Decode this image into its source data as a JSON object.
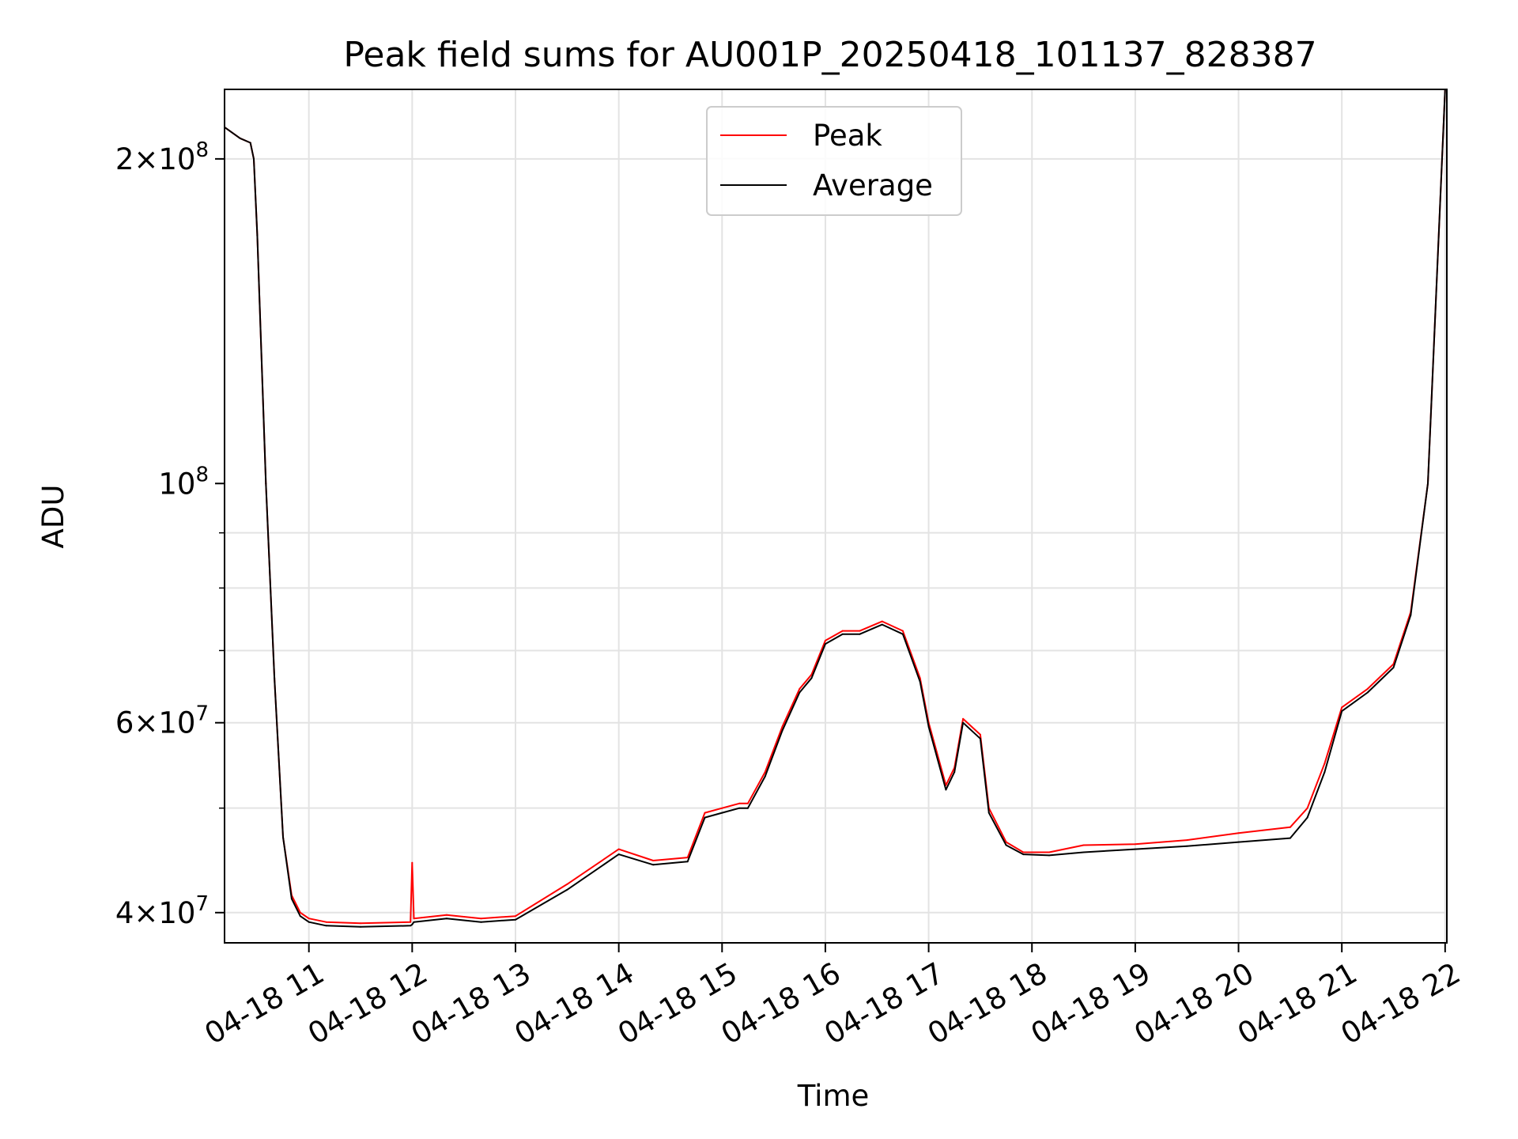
{
  "chart_data": {
    "type": "line",
    "title": "Peak field sums for AU001P_20250418_101137_828387",
    "xlabel": "Time",
    "ylabel": "ADU",
    "yscale": "log",
    "ylim": [
      37500000,
      232000000
    ],
    "xlim": [
      "04-18 10:11",
      "04-18 22:01"
    ],
    "grid": true,
    "legend_position": "upper center",
    "x_ticks": [
      "04-18 11",
      "04-18 12",
      "04-18 13",
      "04-18 14",
      "04-18 15",
      "04-18 16",
      "04-18 17",
      "04-18 18",
      "04-18 19",
      "04-18 20",
      "04-18 21",
      "04-18 22"
    ],
    "y_ticks": [
      {
        "value": 40000000,
        "label": "4×10^7",
        "mantissa": "4×10",
        "exponent": "7"
      },
      {
        "value": 60000000,
        "label": "6×10^7",
        "mantissa": "6×10",
        "exponent": "7"
      },
      {
        "value": 100000000,
        "label": "10^8",
        "mantissa": "10",
        "exponent": "8"
      },
      {
        "value": 200000000,
        "label": "2×10^8",
        "mantissa": "2×10",
        "exponent": "8"
      }
    ],
    "series": [
      {
        "name": "Peak",
        "color": "#ff0000",
        "x": [
          "04-18 10:11",
          "04-18 10:20",
          "04-18 10:26",
          "04-18 10:28",
          "04-18 10:30",
          "04-18 10:35",
          "04-18 10:40",
          "04-18 10:45",
          "04-18 10:50",
          "04-18 10:55",
          "04-18 11:00",
          "04-18 11:10",
          "04-18 11:30",
          "04-18 11:59",
          "04-18 12:00",
          "04-18 12:01",
          "04-18 12:20",
          "04-18 12:40",
          "04-18 13:00",
          "04-18 13:30",
          "04-18 14:00",
          "04-18 14:20",
          "04-18 14:40",
          "04-18 14:50",
          "04-18 15:00",
          "04-18 15:10",
          "04-18 15:15",
          "04-18 15:25",
          "04-18 15:35",
          "04-18 15:45",
          "04-18 15:52",
          "04-18 16:00",
          "04-18 16:10",
          "04-18 16:20",
          "04-18 16:33",
          "04-18 16:45",
          "04-18 16:55",
          "04-18 17:00",
          "04-18 17:10",
          "04-18 17:15",
          "04-18 17:20",
          "04-18 17:30",
          "04-18 17:35",
          "04-18 17:45",
          "04-18 17:55",
          "04-18 18:10",
          "04-18 18:30",
          "04-18 19:00",
          "04-18 19:30",
          "04-18 20:00",
          "04-18 20:30",
          "04-18 20:40",
          "04-18 20:50",
          "04-18 21:00",
          "04-18 21:15",
          "04-18 21:30",
          "04-18 21:40",
          "04-18 21:50",
          "04-18 22:00"
        ],
        "values": [
          214000000,
          209000000,
          207000000,
          200000000,
          170000000,
          100000000,
          66000000,
          47000000,
          41500000,
          40000000,
          39500000,
          39200000,
          39100000,
          39200000,
          44500000,
          39500000,
          39800000,
          39500000,
          39700000,
          42500000,
          45800000,
          44700000,
          45000000,
          49500000,
          50000000,
          50500000,
          50500000,
          54000000,
          59500000,
          64500000,
          66500000,
          71500000,
          73000000,
          73000000,
          74500000,
          73000000,
          66000000,
          60000000,
          52500000,
          54500000,
          60500000,
          58500000,
          50000000,
          46500000,
          45500000,
          45500000,
          46200000,
          46300000,
          46700000,
          47400000,
          48000000,
          50000000,
          55000000,
          62000000,
          64500000,
          68000000,
          76000000,
          100000000,
          232000000
        ]
      },
      {
        "name": "Average",
        "color": "#000000",
        "x": [
          "04-18 10:11",
          "04-18 10:20",
          "04-18 10:26",
          "04-18 10:28",
          "04-18 10:30",
          "04-18 10:35",
          "04-18 10:40",
          "04-18 10:45",
          "04-18 10:50",
          "04-18 10:55",
          "04-18 11:00",
          "04-18 11:10",
          "04-18 11:30",
          "04-18 11:59",
          "04-18 12:00",
          "04-18 12:01",
          "04-18 12:20",
          "04-18 12:40",
          "04-18 13:00",
          "04-18 13:30",
          "04-18 14:00",
          "04-18 14:20",
          "04-18 14:40",
          "04-18 14:50",
          "04-18 15:00",
          "04-18 15:10",
          "04-18 15:15",
          "04-18 15:25",
          "04-18 15:35",
          "04-18 15:45",
          "04-18 15:52",
          "04-18 16:00",
          "04-18 16:10",
          "04-18 16:20",
          "04-18 16:33",
          "04-18 16:45",
          "04-18 16:55",
          "04-18 17:00",
          "04-18 17:10",
          "04-18 17:15",
          "04-18 17:20",
          "04-18 17:30",
          "04-18 17:35",
          "04-18 17:45",
          "04-18 17:55",
          "04-18 18:10",
          "04-18 18:30",
          "04-18 19:00",
          "04-18 19:30",
          "04-18 20:00",
          "04-18 20:30",
          "04-18 20:40",
          "04-18 20:50",
          "04-18 21:00",
          "04-18 21:15",
          "04-18 21:30",
          "04-18 21:40",
          "04-18 21:50",
          "04-18 22:00"
        ],
        "values": [
          214000000,
          209000000,
          207000000,
          200000000,
          170000000,
          100000000,
          66000000,
          47000000,
          41200000,
          39700000,
          39200000,
          38900000,
          38800000,
          38900000,
          39000000,
          39200000,
          39500000,
          39200000,
          39400000,
          42000000,
          45300000,
          44300000,
          44600000,
          49000000,
          49500000,
          50000000,
          50000000,
          53500000,
          59000000,
          64000000,
          66000000,
          71000000,
          72500000,
          72500000,
          74000000,
          72500000,
          65500000,
          59500000,
          52000000,
          54000000,
          60000000,
          58000000,
          49500000,
          46200000,
          45300000,
          45200000,
          45500000,
          45800000,
          46100000,
          46500000,
          46900000,
          49000000,
          54000000,
          61500000,
          64000000,
          67500000,
          75500000,
          100000000,
          232000000
        ]
      }
    ]
  }
}
